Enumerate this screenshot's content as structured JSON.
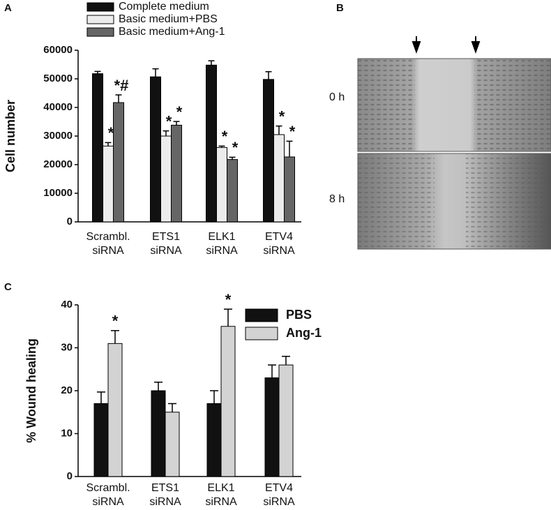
{
  "panels": {
    "labels": [
      "A",
      "B",
      "C"
    ],
    "image_labels": [
      "0 h",
      "8 h"
    ]
  },
  "chart_data": [
    {
      "type": "bar",
      "ylabel": "Cell number",
      "categories": [
        [
          "Scrambl.",
          "siRNA"
        ],
        [
          "ETS1",
          "siRNA"
        ],
        [
          "ELK1",
          "siRNA"
        ],
        [
          "ETV4",
          "siRNA"
        ]
      ],
      "series": [
        {
          "name": "Complete medium",
          "color": "#111111",
          "values": [
            51800,
            50700,
            54800,
            49800
          ],
          "errors": [
            800,
            2800,
            1500,
            2700
          ]
        },
        {
          "name": "Basic medium+PBS",
          "color": "#ececec",
          "values": [
            26500,
            30000,
            26000,
            30500
          ],
          "errors": [
            1200,
            1800,
            500,
            3000
          ],
          "annotations": [
            "*",
            "*",
            "*",
            "*"
          ]
        },
        {
          "name": "Basic medium+Ang-1",
          "color": "#666666",
          "values": [
            41700,
            33800,
            21800,
            22700
          ],
          "errors": [
            2700,
            1300,
            800,
            5500
          ],
          "annotations": [
            "*#",
            "*",
            "*",
            "*"
          ]
        }
      ],
      "ylim": [
        0,
        60000
      ],
      "yticks": [
        0,
        10000,
        20000,
        30000,
        40000,
        50000,
        60000
      ],
      "legend": "top"
    },
    {
      "type": "bar",
      "ylabel": "% Wound healing",
      "categories": [
        [
          "Scrambl.",
          "siRNA"
        ],
        [
          "ETS1",
          "siRNA"
        ],
        [
          "ELK1",
          "siRNA"
        ],
        [
          "ETV4",
          "siRNA"
        ]
      ],
      "series": [
        {
          "name": "PBS",
          "color": "#111111",
          "values": [
            17,
            20,
            17,
            23
          ],
          "errors": [
            2.7,
            2,
            3,
            3
          ]
        },
        {
          "name": "Ang-1",
          "color": "#d3d3d3",
          "values": [
            31,
            15,
            35,
            26
          ],
          "errors": [
            3,
            2,
            4,
            2
          ],
          "annotations": [
            "*",
            null,
            "*",
            null
          ]
        }
      ],
      "ylim": [
        0,
        40
      ],
      "yticks": [
        0,
        10,
        20,
        30,
        40
      ],
      "legend": "top-right"
    }
  ]
}
